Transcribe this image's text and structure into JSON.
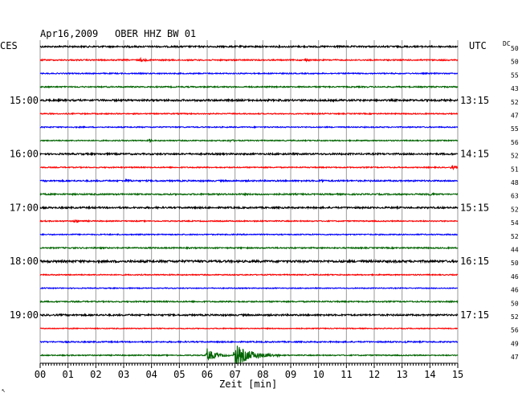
{
  "header": {
    "date": "Apr16,2009",
    "station": "OBER HHZ BW 01",
    "left_tz": "CES",
    "right_tz": "UTC",
    "dc_label": "DC"
  },
  "footer": {
    "xlabel": "Zeit [min]",
    "corner_mark": "↖"
  },
  "chart_data": {
    "type": "line",
    "title": "Apr16,2009 OBER HHZ BW 01",
    "xlabel": "Zeit [min]",
    "ylabel": "",
    "xlim": [
      0,
      15
    ],
    "x_ticks": [
      "00",
      "01",
      "02",
      "03",
      "04",
      "05",
      "06",
      "07",
      "08",
      "09",
      "10",
      "11",
      "12",
      "13",
      "14",
      "15"
    ],
    "grid": true,
    "left_time_labels": [
      {
        "row": 4,
        "text": "15:00"
      },
      {
        "row": 8,
        "text": "16:00"
      },
      {
        "row": 12,
        "text": "17:00"
      },
      {
        "row": 16,
        "text": "18:00"
      },
      {
        "row": 20,
        "text": "19:00"
      }
    ],
    "right_time_labels": [
      {
        "row": 4,
        "text": "13:15"
      },
      {
        "row": 8,
        "text": "14:15"
      },
      {
        "row": 12,
        "text": "15:15"
      },
      {
        "row": 16,
        "text": "16:15"
      },
      {
        "row": 20,
        "text": "17:15"
      }
    ],
    "trace_colors": [
      "#000000",
      "#ff0000",
      "#0000ff",
      "#006400"
    ],
    "dc_offsets": [
      50,
      50,
      55,
      43,
      52,
      47,
      55,
      56,
      52,
      51,
      48,
      63,
      52,
      54,
      52,
      44,
      50,
      46,
      46,
      50,
      52,
      56,
      49,
      47
    ],
    "traces": [
      {
        "row": 0,
        "amp": 0.45,
        "events": []
      },
      {
        "row": 1,
        "amp": 0.35,
        "events": [
          {
            "min": 3.6,
            "amp": 0.7,
            "dur": 0.4
          },
          {
            "min": 9.5,
            "amp": 0.6,
            "dur": 0.3
          }
        ]
      },
      {
        "row": 2,
        "amp": 0.3,
        "events": []
      },
      {
        "row": 3,
        "amp": 0.35,
        "events": []
      },
      {
        "row": 4,
        "amp": 0.5,
        "events": []
      },
      {
        "row": 5,
        "amp": 0.3,
        "events": []
      },
      {
        "row": 6,
        "amp": 0.3,
        "events": []
      },
      {
        "row": 7,
        "amp": 0.3,
        "events": [
          {
            "min": 3.95,
            "amp": 0.9,
            "dur": 0.15
          },
          {
            "min": 6.8,
            "amp": 0.5,
            "dur": 0.4
          }
        ]
      },
      {
        "row": 8,
        "amp": 0.45,
        "events": []
      },
      {
        "row": 9,
        "amp": 0.3,
        "events": [
          {
            "min": 14.8,
            "amp": 1.2,
            "dur": 0.2
          }
        ]
      },
      {
        "row": 10,
        "amp": 0.4,
        "events": [
          {
            "min": 3.1,
            "amp": 0.7,
            "dur": 0.3
          },
          {
            "min": 10.1,
            "amp": 0.9,
            "dur": 0.15
          }
        ]
      },
      {
        "row": 11,
        "amp": 0.4,
        "events": [
          {
            "min": 14.0,
            "amp": 0.6,
            "dur": 0.4
          }
        ]
      },
      {
        "row": 12,
        "amp": 0.45,
        "events": []
      },
      {
        "row": 13,
        "amp": 0.3,
        "events": [
          {
            "min": 1.2,
            "amp": 0.7,
            "dur": 0.6
          }
        ]
      },
      {
        "row": 14,
        "amp": 0.3,
        "events": []
      },
      {
        "row": 15,
        "amp": 0.35,
        "events": []
      },
      {
        "row": 16,
        "amp": 0.6,
        "events": []
      },
      {
        "row": 17,
        "amp": 0.3,
        "events": []
      },
      {
        "row": 18,
        "amp": 0.25,
        "events": []
      },
      {
        "row": 19,
        "amp": 0.35,
        "events": []
      },
      {
        "row": 20,
        "amp": 0.45,
        "events": []
      },
      {
        "row": 21,
        "amp": 0.25,
        "events": []
      },
      {
        "row": 22,
        "amp": 0.35,
        "events": [
          {
            "min": 13.1,
            "amp": 0.7,
            "dur": 0.1
          }
        ]
      },
      {
        "row": 23,
        "amp": 0.3,
        "events": [
          {
            "min": 6.0,
            "amp": 3.6,
            "dur": 0.8
          },
          {
            "min": 7.0,
            "amp": 6.0,
            "dur": 1.6
          }
        ]
      }
    ]
  }
}
